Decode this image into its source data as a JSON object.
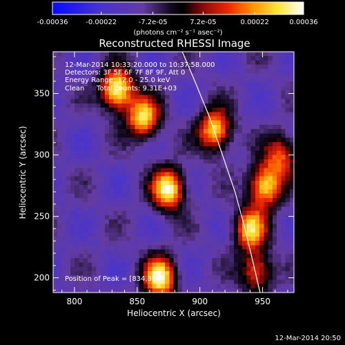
{
  "chart_data": {
    "type": "heatmap",
    "title": "Reconstructed RHESSI Image",
    "xlabel": "Heliocentric X (arcsec)",
    "ylabel": "Heliocentric Y (arcsec)",
    "xlim": [
      783,
      975
    ],
    "ylim": [
      188,
      384
    ],
    "x_ticks": [
      800,
      850,
      900,
      950
    ],
    "y_ticks": [
      200,
      250,
      300,
      350
    ],
    "colorbar": {
      "ticks": [
        -0.00036,
        -0.00022,
        -7.2e-05,
        7.2e-05,
        0.00022,
        0.00036
      ],
      "tick_labels": [
        "-0.00036",
        "-0.00022",
        "-7.2e-05",
        "7.2e-05",
        "0.00022",
        "0.00036"
      ],
      "range": [
        -0.00036,
        0.00036
      ],
      "unit_label": "(photons cm⁻² s⁻¹ asec⁻²)"
    },
    "annotations": {
      "time_range": "12-Mar-2014 10:33:20.000 to 10:37:58.000",
      "detectors": "Detectors: 3F 5F 6F 7F 8F 9F, Att 0",
      "energy": "Energy Range: 12.0 - 25.0 keV",
      "clean": "Clean",
      "total_counts": "Total counts: 9.31E+03",
      "peak": "Position of Peak = [834,353]"
    },
    "limb_curve_x": [
      886,
      896,
      908,
      918,
      928,
      936,
      943,
      948
    ],
    "limb_curve_y": [
      384,
      360,
      330,
      300,
      270,
      240,
      210,
      188
    ],
    "sources": [
      {
        "x": 834,
        "y": 353,
        "peak": 0.00036
      },
      {
        "x": 855,
        "y": 330,
        "peak": 0.00028
      },
      {
        "x": 875,
        "y": 272,
        "peak": 0.00033
      },
      {
        "x": 912,
        "y": 320,
        "peak": 0.00029
      },
      {
        "x": 952,
        "y": 275,
        "peak": 0.00031
      },
      {
        "x": 940,
        "y": 240,
        "peak": 0.00026
      },
      {
        "x": 868,
        "y": 200,
        "peak": 0.00032
      },
      {
        "x": 945,
        "y": 205,
        "peak": 0.00018
      },
      {
        "x": 965,
        "y": 300,
        "peak": 0.00015
      }
    ]
  },
  "footer": {
    "timestamp": "12-Mar-2014 20:50"
  }
}
